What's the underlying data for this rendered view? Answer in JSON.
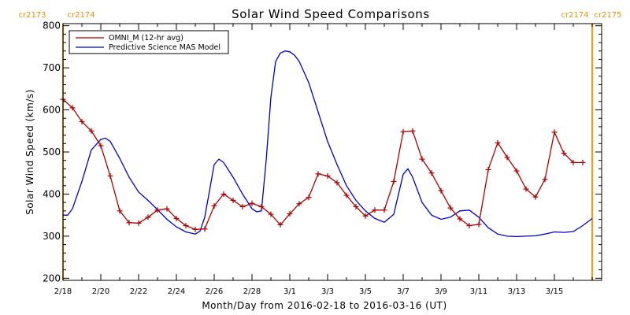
{
  "chart_data": {
    "type": "line",
    "title": "Solar Wind Speed Comparisons",
    "xlabel": "Month/Day from 2016-02-18 to 2016-03-16 (UT)",
    "ylabel": "Solar Wind Speed (km/s)",
    "xlim": [
      "2016-02-18",
      "2016-03-17T12:00"
    ],
    "ylim": [
      195,
      805
    ],
    "yticks": [
      200,
      300,
      400,
      500,
      600,
      700,
      800
    ],
    "xticks": [
      {
        "date": "2016-02-18",
        "label": "2/18"
      },
      {
        "date": "2016-02-20",
        "label": "2/20"
      },
      {
        "date": "2016-02-22",
        "label": "2/22"
      },
      {
        "date": "2016-02-24",
        "label": "2/24"
      },
      {
        "date": "2016-02-26",
        "label": "2/26"
      },
      {
        "date": "2016-02-28",
        "label": "2/28"
      },
      {
        "date": "2016-03-01",
        "label": "3/1"
      },
      {
        "date": "2016-03-03",
        "label": "3/3"
      },
      {
        "date": "2016-03-05",
        "label": "3/5"
      },
      {
        "date": "2016-03-07",
        "label": "3/7"
      },
      {
        "date": "2016-03-09",
        "label": "3/9"
      },
      {
        "date": "2016-03-11",
        "label": "3/11"
      },
      {
        "date": "2016-03-13",
        "label": "3/13"
      },
      {
        "date": "2016-03-15",
        "label": "3/15"
      }
    ],
    "grid": false,
    "legend": "top-left",
    "carrington_markers": [
      {
        "date": "2016-02-18",
        "left": "cr2173",
        "right": "cr2174"
      },
      {
        "date": "2016-03-17",
        "left": "cr2174",
        "right": "cr2175"
      }
    ],
    "marker_color": "#ff9900",
    "series": [
      {
        "name": "OMNI_M (12-hr avg)",
        "color": "#aa0000",
        "markers": "plus",
        "x": [
          "2016-02-18T00:00",
          "2016-02-18T12:00",
          "2016-02-19T00:00",
          "2016-02-19T12:00",
          "2016-02-20T00:00",
          "2016-02-20T12:00",
          "2016-02-21T00:00",
          "2016-02-21T12:00",
          "2016-02-22T00:00",
          "2016-02-22T12:00",
          "2016-02-23T00:00",
          "2016-02-23T12:00",
          "2016-02-24T00:00",
          "2016-02-24T12:00",
          "2016-02-25T00:00",
          "2016-02-25T12:00",
          "2016-02-26T00:00",
          "2016-02-26T12:00",
          "2016-02-27T00:00",
          "2016-02-27T12:00",
          "2016-02-28T00:00",
          "2016-02-28T12:00",
          "2016-02-29T00:00",
          "2016-02-29T12:00",
          "2016-03-01T00:00",
          "2016-03-01T12:00",
          "2016-03-02T00:00",
          "2016-03-02T12:00",
          "2016-03-03T00:00",
          "2016-03-03T12:00",
          "2016-03-04T00:00",
          "2016-03-04T12:00",
          "2016-03-05T00:00",
          "2016-03-05T12:00",
          "2016-03-06T00:00",
          "2016-03-06T12:00",
          "2016-03-07T00:00",
          "2016-03-07T12:00",
          "2016-03-08T00:00",
          "2016-03-08T12:00",
          "2016-03-09T00:00",
          "2016-03-09T12:00",
          "2016-03-10T00:00",
          "2016-03-10T12:00",
          "2016-03-11T00:00",
          "2016-03-11T12:00",
          "2016-03-12T00:00",
          "2016-03-12T12:00",
          "2016-03-13T00:00",
          "2016-03-13T12:00",
          "2016-03-14T00:00",
          "2016-03-14T12:00",
          "2016-03-15T00:00",
          "2016-03-15T12:00",
          "2016-03-16T00:00",
          "2016-03-16T12:00"
        ],
        "y": [
          625,
          605,
          572,
          550,
          515,
          443,
          360,
          332,
          331,
          345,
          362,
          365,
          342,
          325,
          316,
          317,
          372,
          400,
          385,
          370,
          378,
          370,
          352,
          327,
          353,
          377,
          392,
          448,
          443,
          427,
          397,
          370,
          348,
          362,
          362,
          430,
          548,
          550,
          483,
          450,
          408,
          367,
          341,
          325,
          328,
          458,
          522,
          487,
          455,
          412,
          393,
          435,
          547,
          497,
          475,
          475
        ]
      },
      {
        "name": "Predictive Science MAS Model",
        "color": "#0000cc",
        "markers": "none",
        "x": [
          "2016-02-18T00:00",
          "2016-02-18T06:00",
          "2016-02-18T12:00",
          "2016-02-19T00:00",
          "2016-02-19T12:00",
          "2016-02-20T00:00",
          "2016-02-20T06:00",
          "2016-02-20T12:00",
          "2016-02-21T00:00",
          "2016-02-21T12:00",
          "2016-02-22T00:00",
          "2016-02-22T12:00",
          "2016-02-23T00:00",
          "2016-02-23T12:00",
          "2016-02-24T00:00",
          "2016-02-24T12:00",
          "2016-02-25T00:00",
          "2016-02-25T06:00",
          "2016-02-25T12:00",
          "2016-02-26T00:00",
          "2016-02-26T06:00",
          "2016-02-26T12:00",
          "2016-02-27T00:00",
          "2016-02-27T12:00",
          "2016-02-28T00:00",
          "2016-02-28T06:00",
          "2016-02-28T12:00",
          "2016-02-28T18:00",
          "2016-02-29T00:00",
          "2016-02-29T06:00",
          "2016-02-29T12:00",
          "2016-02-29T18:00",
          "2016-03-01T00:00",
          "2016-03-01T06:00",
          "2016-03-01T12:00",
          "2016-03-02T00:00",
          "2016-03-02T12:00",
          "2016-03-03T00:00",
          "2016-03-03T12:00",
          "2016-03-04T00:00",
          "2016-03-04T12:00",
          "2016-03-05T00:00",
          "2016-03-05T12:00",
          "2016-03-06T00:00",
          "2016-03-06T12:00",
          "2016-03-07T00:00",
          "2016-03-07T06:00",
          "2016-03-07T12:00",
          "2016-03-08T00:00",
          "2016-03-08T12:00",
          "2016-03-09T00:00",
          "2016-03-09T12:00",
          "2016-03-10T00:00",
          "2016-03-10T12:00",
          "2016-03-11T00:00",
          "2016-03-11T12:00",
          "2016-03-12T00:00",
          "2016-03-12T12:00",
          "2016-03-13T00:00",
          "2016-03-13T12:00",
          "2016-03-14T00:00",
          "2016-03-14T12:00",
          "2016-03-15T00:00",
          "2016-03-15T12:00",
          "2016-03-16T00:00",
          "2016-03-16T12:00",
          "2016-03-17T00:00"
        ],
        "y": [
          350,
          350,
          365,
          430,
          505,
          530,
          533,
          525,
          485,
          440,
          405,
          385,
          363,
          340,
          322,
          310,
          305,
          312,
          345,
          470,
          483,
          475,
          440,
          400,
          365,
          358,
          360,
          480,
          630,
          715,
          735,
          740,
          738,
          730,
          715,
          665,
          595,
          525,
          470,
          420,
          385,
          360,
          342,
          333,
          352,
          447,
          460,
          440,
          380,
          350,
          340,
          345,
          360,
          362,
          345,
          320,
          305,
          300,
          299,
          300,
          301,
          305,
          310,
          309,
          311,
          325,
          342
        ]
      }
    ]
  }
}
